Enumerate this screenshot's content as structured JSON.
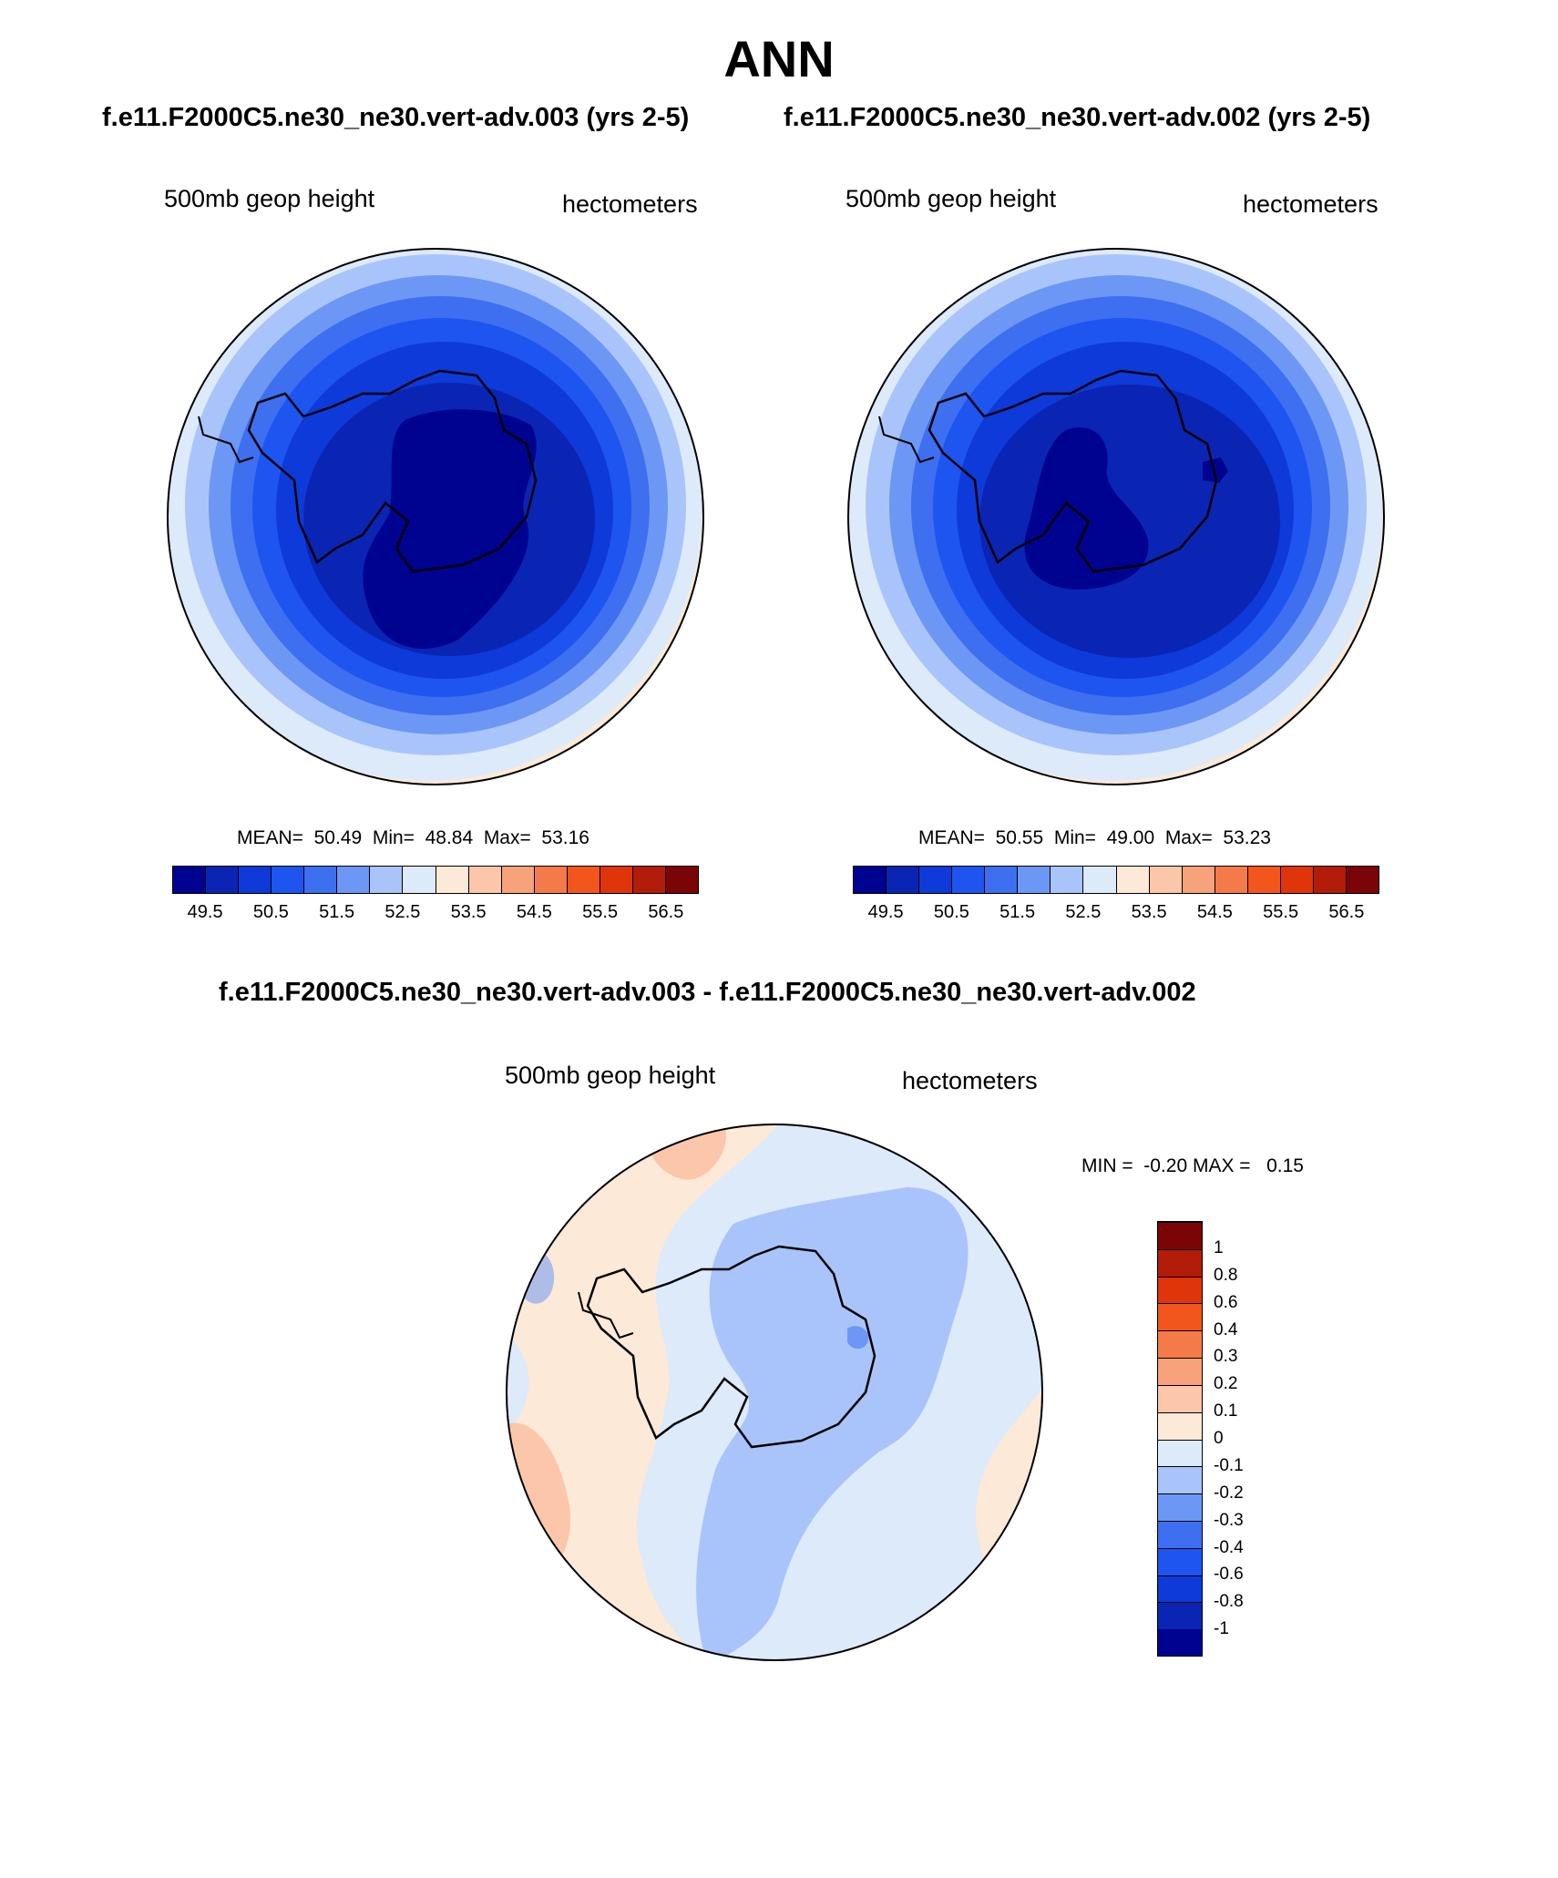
{
  "page": {
    "title": "ANN",
    "case_a_header": "f.e11.F2000C5.ne30_ne30.vert-adv.003 (yrs 2-5)",
    "case_b_header": "f.e11.F2000C5.ne30_ne30.vert-adv.002 (yrs 2-5)",
    "diff_header": "f.e11.F2000C5.ne30_ne30.vert-adv.003 - f.e11.F2000C5.ne30_ne30.vert-adv.002"
  },
  "panels": [
    {
      "variable": "500mb geop height",
      "units": "hectometers",
      "stats": "MEAN=  50.49  Min=  48.84  Max=  53.16",
      "mean": 50.49,
      "min": 48.84,
      "max": 53.16
    },
    {
      "variable": "500mb geop height",
      "units": "hectometers",
      "stats": "MEAN=  50.55  Min=  49.00  Max=  53.23",
      "mean": 50.55,
      "min": 49.0,
      "max": 53.23
    },
    {
      "variable": "500mb geop height",
      "units": "hectometers",
      "stats": "MIN =  -0.20 MAX =   0.15",
      "min": -0.2,
      "max": 0.15
    }
  ],
  "colorbar_main": {
    "colors": [
      "#00038f",
      "#0a25b3",
      "#0d3ad9",
      "#1e55f0",
      "#3d6ff0",
      "#6d97f5",
      "#a9c4fa",
      "#dceafa",
      "#fde9d7",
      "#fbc6aa",
      "#f7a27a",
      "#f57a4a",
      "#f2561c",
      "#e0340a",
      "#b31c08",
      "#7a0406"
    ],
    "ticks": [
      "49.5",
      "50.5",
      "51.5",
      "52.5",
      "53.5",
      "54.5",
      "55.5",
      "56.5"
    ]
  },
  "colorbar_diff": {
    "colors": [
      "#00038f",
      "#0a25b3",
      "#0d3ad9",
      "#1e55f0",
      "#3d6ff0",
      "#6d97f5",
      "#a9c4fa",
      "#dceafa",
      "#fde9d7",
      "#fbc6aa",
      "#f7a27a",
      "#f57a4a",
      "#f2561c",
      "#e0340a",
      "#b31c08",
      "#7a0406"
    ],
    "ticks": [
      "-1",
      "-0.8",
      "-0.6",
      "-0.4",
      "-0.3",
      "-0.2",
      "-0.1",
      "0",
      "0.1",
      "0.2",
      "0.3",
      "0.4",
      "0.6",
      "0.8",
      "1"
    ]
  }
}
